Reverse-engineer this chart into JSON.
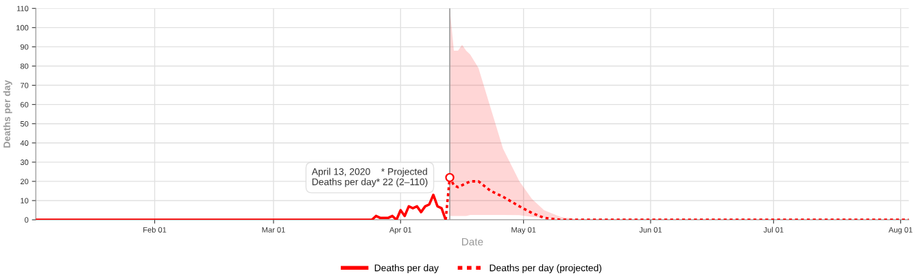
{
  "chart_data": {
    "type": "line",
    "xlabel": "Date",
    "ylabel": "Deaths per day",
    "xlim": [
      "2020-01-03",
      "2020-08-03"
    ],
    "xticks": [
      {
        "value": "2020-02-01",
        "label": "Feb 01"
      },
      {
        "value": "2020-03-01",
        "label": "Mar 01"
      },
      {
        "value": "2020-04-01",
        "label": "Apr 01"
      },
      {
        "value": "2020-05-01",
        "label": "May 01"
      },
      {
        "value": "2020-06-01",
        "label": "Jun 01"
      },
      {
        "value": "2020-07-01",
        "label": "Jul 01"
      },
      {
        "value": "2020-08-01",
        "label": "Aug 01"
      }
    ],
    "ylim": [
      0,
      110
    ],
    "yticks": [
      0,
      10,
      20,
      30,
      40,
      50,
      60,
      70,
      80,
      90,
      100,
      110
    ],
    "grid": true,
    "legend": "bottom",
    "marker": "none",
    "series": [
      {
        "name": "Deaths per day",
        "color": "#ff0000",
        "line_style": "solid",
        "x": [
          "2020-01-03",
          "2020-03-22",
          "2020-03-23",
          "2020-03-24",
          "2020-03-25",
          "2020-03-26",
          "2020-03-27",
          "2020-03-28",
          "2020-03-29",
          "2020-03-30",
          "2020-03-31",
          "2020-04-01",
          "2020-04-02",
          "2020-04-03",
          "2020-04-04",
          "2020-04-05",
          "2020-04-06",
          "2020-04-07",
          "2020-04-08",
          "2020-04-09",
          "2020-04-10",
          "2020-04-11",
          "2020-04-12"
        ],
        "values": [
          0,
          0,
          0,
          0,
          0,
          2,
          1,
          1,
          1,
          2,
          0,
          5,
          2,
          7,
          6,
          7,
          4,
          7,
          8,
          13,
          7,
          6,
          0
        ]
      },
      {
        "name": "Deaths per day (projected)",
        "color": "#ff0000",
        "line_style": "dotted",
        "x": [
          "2020-04-12",
          "2020-04-13",
          "2020-04-14",
          "2020-04-15",
          "2020-04-16",
          "2020-04-17",
          "2020-04-18",
          "2020-04-20",
          "2020-04-23",
          "2020-04-26",
          "2020-04-30",
          "2020-05-03",
          "2020-05-06",
          "2020-05-10",
          "2020-05-14",
          "2020-08-03"
        ],
        "values": [
          0,
          22,
          18,
          17,
          18,
          19,
          20,
          20,
          15,
          12,
          7,
          3.6,
          1,
          0,
          0,
          0
        ],
        "lower": [
          null,
          2,
          2,
          2,
          2,
          2,
          2.5,
          2.5,
          2.5,
          2.5,
          2.4,
          1.5,
          1,
          0.3,
          0,
          0
        ],
        "upper": [
          null,
          110,
          88,
          88,
          91,
          88,
          86,
          79,
          58,
          37,
          20,
          11,
          5,
          1.5,
          0.3,
          0
        ]
      }
    ],
    "ref_lines": [
      {
        "axis": "x",
        "value": "2020-04-13",
        "color": "#999999"
      }
    ],
    "annotations": [
      {
        "text": "April 13, 2020    * Projected\nDeaths per day* 22 (2–110)",
        "x": "2020-04-13",
        "y": 22
      }
    ]
  }
}
